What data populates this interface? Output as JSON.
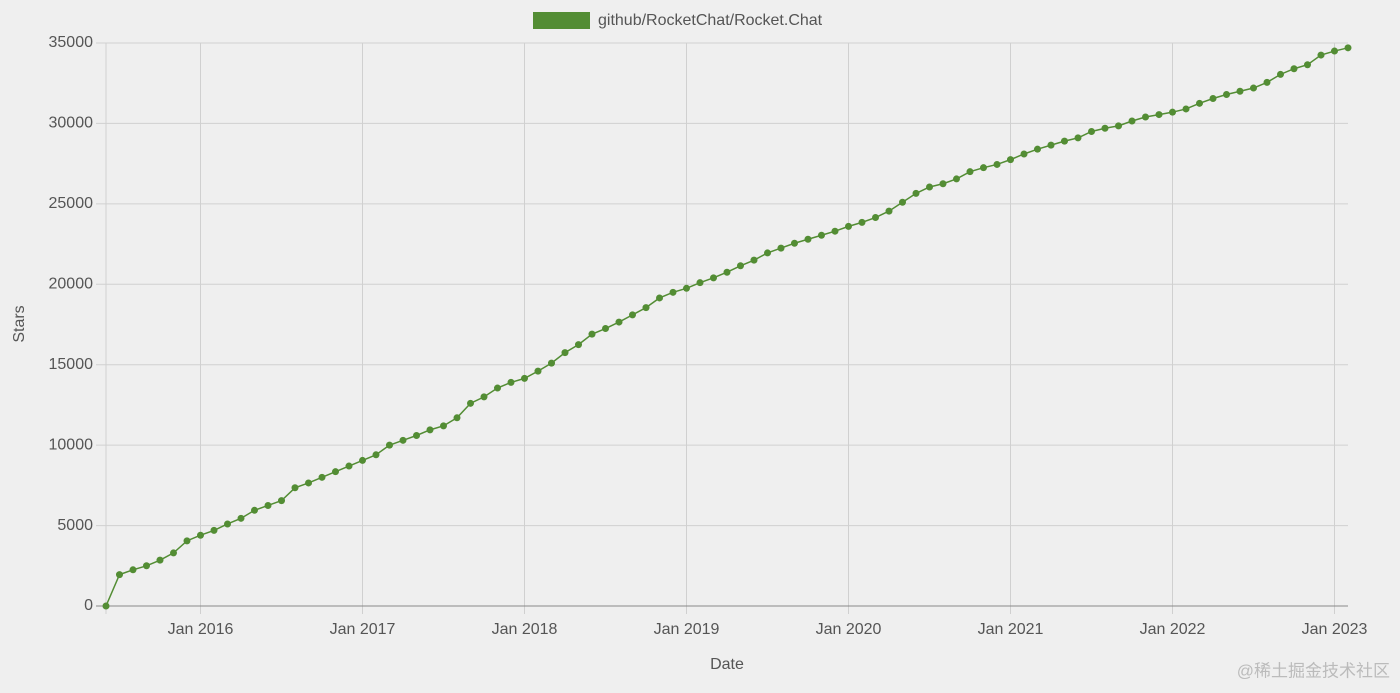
{
  "chart_data": {
    "type": "line",
    "legend_position": "top",
    "x_label": "Date",
    "y_label": "Stars",
    "watermark": "@稀土掘金技术社区",
    "grid": true,
    "xlim": [
      "2015-06",
      "2023-02"
    ],
    "xticks": [
      {
        "value": "2016-01",
        "label": "Jan 2016"
      },
      {
        "value": "2017-01",
        "label": "Jan 2017"
      },
      {
        "value": "2018-01",
        "label": "Jan 2018"
      },
      {
        "value": "2019-01",
        "label": "Jan 2019"
      },
      {
        "value": "2020-01",
        "label": "Jan 2020"
      },
      {
        "value": "2021-01",
        "label": "Jan 2021"
      },
      {
        "value": "2022-01",
        "label": "Jan 2022"
      },
      {
        "value": "2023-01",
        "label": "Jan 2023"
      }
    ],
    "ylim": [
      0,
      35000
    ],
    "yticks": [
      0,
      5000,
      10000,
      15000,
      20000,
      25000,
      30000,
      35000
    ],
    "x": [
      "2015-06",
      "2015-07",
      "2015-08",
      "2015-09",
      "2015-10",
      "2015-11",
      "2015-12",
      "2016-01",
      "2016-02",
      "2016-03",
      "2016-04",
      "2016-05",
      "2016-06",
      "2016-07",
      "2016-08",
      "2016-09",
      "2016-10",
      "2016-11",
      "2016-12",
      "2017-01",
      "2017-02",
      "2017-03",
      "2017-04",
      "2017-05",
      "2017-06",
      "2017-07",
      "2017-08",
      "2017-09",
      "2017-10",
      "2017-11",
      "2017-12",
      "2018-01",
      "2018-02",
      "2018-03",
      "2018-04",
      "2018-05",
      "2018-06",
      "2018-07",
      "2018-08",
      "2018-09",
      "2018-10",
      "2018-11",
      "2018-12",
      "2019-01",
      "2019-02",
      "2019-03",
      "2019-04",
      "2019-05",
      "2019-06",
      "2019-07",
      "2019-08",
      "2019-09",
      "2019-10",
      "2019-11",
      "2019-12",
      "2020-01",
      "2020-02",
      "2020-03",
      "2020-04",
      "2020-05",
      "2020-06",
      "2020-07",
      "2020-08",
      "2020-09",
      "2020-10",
      "2020-11",
      "2020-12",
      "2021-01",
      "2021-02",
      "2021-03",
      "2021-04",
      "2021-05",
      "2021-06",
      "2021-07",
      "2021-08",
      "2021-09",
      "2021-10",
      "2021-11",
      "2021-12",
      "2022-01",
      "2022-02",
      "2022-03",
      "2022-04",
      "2022-05",
      "2022-06",
      "2022-07",
      "2022-08",
      "2022-09",
      "2022-10",
      "2022-11",
      "2022-12",
      "2023-01",
      "2023-02"
    ],
    "series": [
      {
        "name": "github/RocketChat/Rocket.Chat",
        "color": "#538d34",
        "values": [
          0,
          1950,
          2250,
          2500,
          2850,
          3300,
          4050,
          4400,
          4700,
          5100,
          5450,
          5950,
          6250,
          6550,
          7350,
          7650,
          8000,
          8350,
          8700,
          9050,
          9400,
          10000,
          10300,
          10600,
          10950,
          11200,
          11700,
          12600,
          13000,
          13550,
          13900,
          14150,
          14600,
          15100,
          15750,
          16250,
          16900,
          17250,
          17650,
          18100,
          18550,
          19150,
          19500,
          19750,
          20100,
          20400,
          20750,
          21150,
          21500,
          21950,
          22250,
          22550,
          22800,
          23050,
          23300,
          23600,
          23850,
          24150,
          24550,
          25100,
          25650,
          26050,
          26250,
          26550,
          27000,
          27250,
          27450,
          27750,
          28100,
          28400,
          28650,
          28900,
          29100,
          29500,
          29700,
          29850,
          30150,
          30400,
          30550,
          30700,
          30900,
          31250,
          31550,
          31800,
          32000,
          32200,
          32550,
          33050,
          33400,
          33650,
          34250,
          34500,
          34700
        ]
      }
    ]
  }
}
